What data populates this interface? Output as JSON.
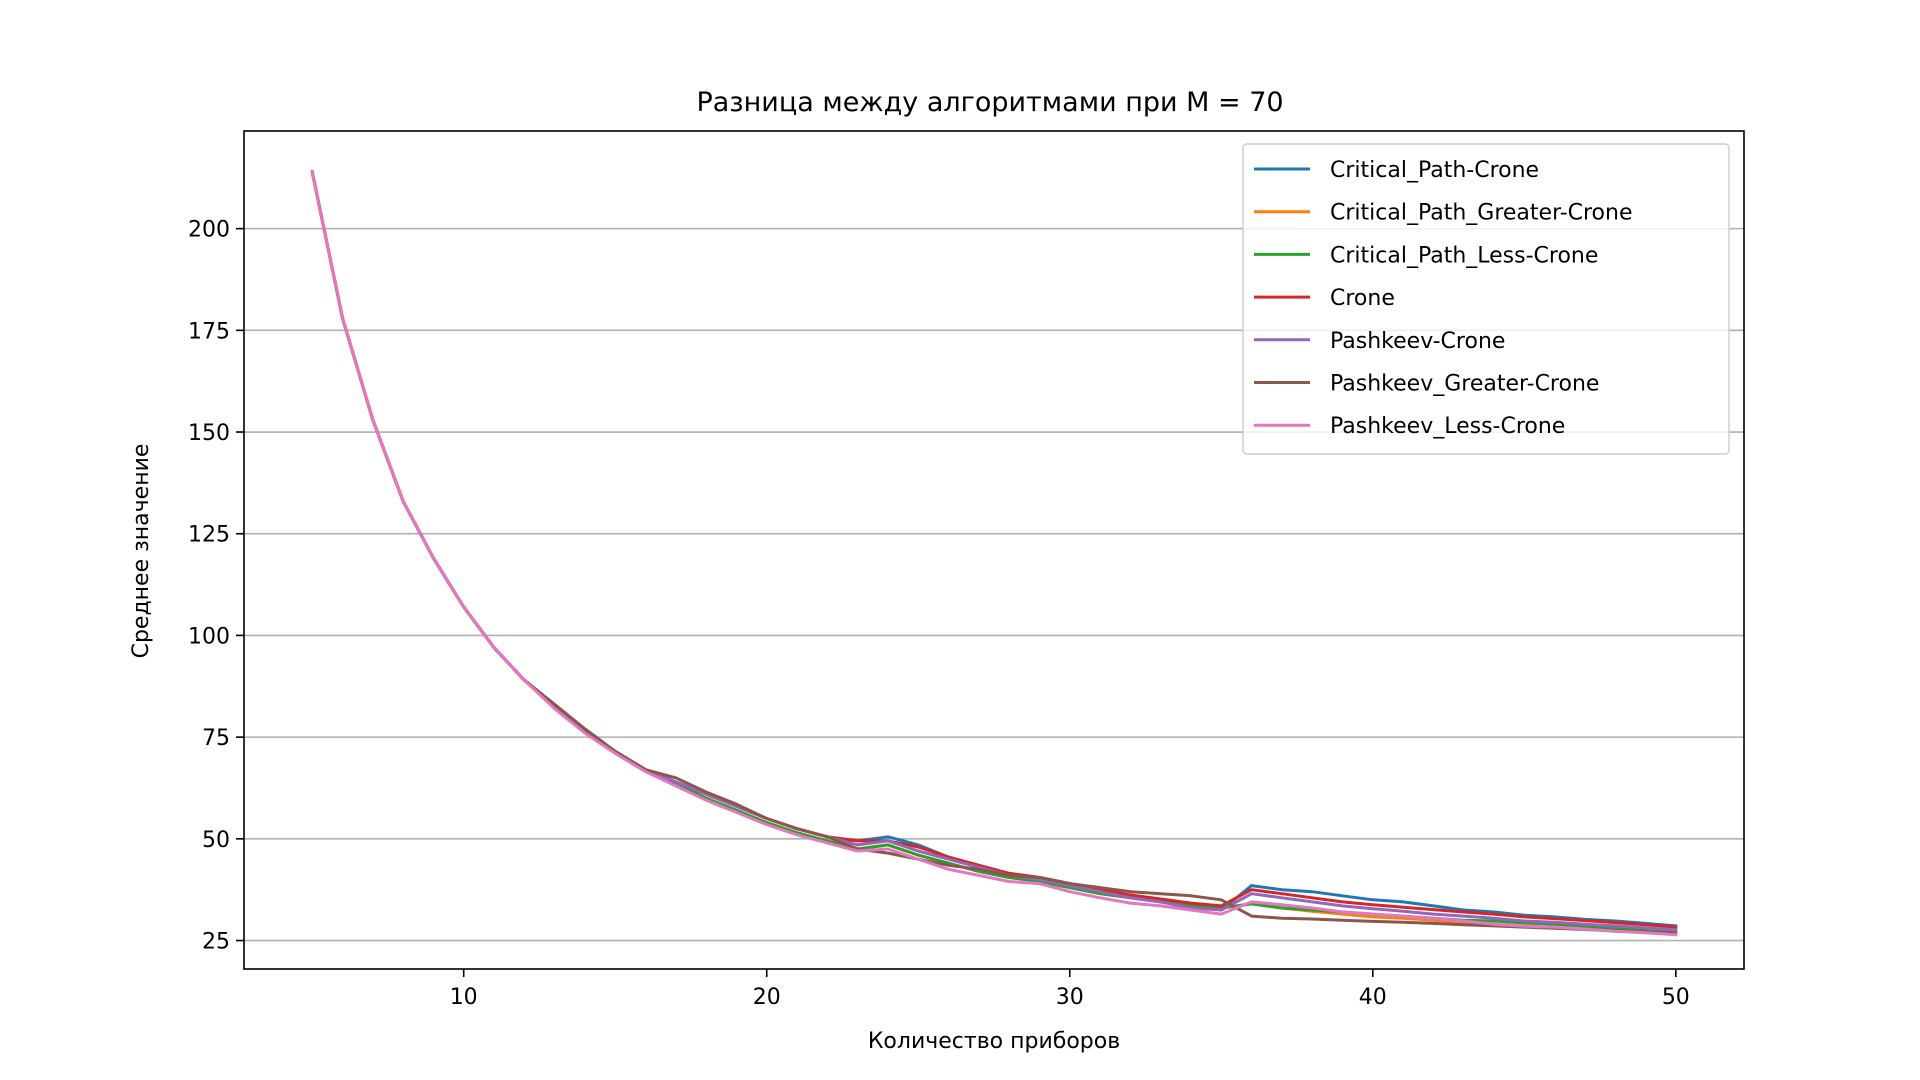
{
  "chart_data": {
    "type": "line",
    "title": "Разница между алгоритмами при M = 70",
    "xlabel": "Количество приборов",
    "ylabel": "Среднее значение",
    "xlim": [
      2.75,
      52.25
    ],
    "ylim": [
      18,
      224
    ],
    "xticks": [
      10,
      20,
      30,
      40,
      50
    ],
    "yticks": [
      25,
      50,
      75,
      100,
      125,
      150,
      175,
      200
    ],
    "grid": "y",
    "legend_position": "top-right",
    "x": [
      5,
      6,
      7,
      8,
      9,
      10,
      11,
      12,
      13,
      14,
      15,
      16,
      17,
      18,
      19,
      20,
      21,
      22,
      23,
      24,
      25,
      26,
      27,
      28,
      29,
      30,
      31,
      32,
      33,
      34,
      35,
      36,
      37,
      38,
      39,
      40,
      41,
      42,
      43,
      44,
      45,
      46,
      47,
      48,
      49,
      50
    ],
    "series": [
      {
        "name": "Critical_Path-Crone",
        "color": "#1f77b4",
        "values": [
          214,
          178,
          153,
          133,
          119,
          107,
          97,
          89,
          83,
          77,
          71.5,
          67,
          64,
          61,
          58,
          55,
          52.5,
          50.5,
          49.5,
          50.5,
          48.5,
          45.5,
          43.5,
          41.5,
          40.5,
          39,
          37.5,
          36,
          35,
          33.5,
          32.5,
          38.5,
          37.5,
          37,
          36,
          35,
          34.5,
          33.5,
          32.5,
          32,
          31.2,
          30.8,
          30.2,
          29.8,
          29.2,
          28.6
        ]
      },
      {
        "name": "Critical_Path_Greater-Crone",
        "color": "#ff7f0e",
        "values": [
          214,
          178,
          153,
          133,
          119,
          107,
          97,
          89,
          82.5,
          76.5,
          71.5,
          67,
          63.5,
          60,
          57,
          54,
          51.5,
          49.5,
          47.5,
          48.5,
          46,
          44,
          42,
          40.5,
          39.5,
          38,
          36.5,
          35.5,
          34.5,
          33.5,
          33,
          34,
          33,
          32.2,
          31.5,
          30.8,
          30.5,
          30,
          29.5,
          29,
          28.5,
          28.2,
          27.8,
          27.3,
          27,
          26.6
        ]
      },
      {
        "name": "Critical_Path_Less-Crone",
        "color": "#2ca02c",
        "values": [
          214,
          178,
          153,
          133,
          119,
          107,
          97,
          89,
          82.5,
          76.5,
          71.5,
          67,
          63.5,
          60,
          57,
          54,
          51.5,
          49.5,
          47.5,
          48.5,
          46,
          44,
          42,
          40.5,
          39.5,
          38,
          36.5,
          35.5,
          34.5,
          33.5,
          33,
          34,
          33,
          32.5,
          32,
          31.5,
          31,
          30.5,
          30,
          29.8,
          29.3,
          29,
          28.5,
          28,
          27.8,
          27.4
        ]
      },
      {
        "name": "Crone",
        "color": "#d62728",
        "values": [
          214,
          178,
          153,
          133,
          119,
          107,
          97,
          89,
          83,
          77,
          71.5,
          67,
          64,
          61,
          58,
          55,
          52.5,
          50.5,
          49.5,
          49.5,
          48,
          45.5,
          43.5,
          41.5,
          40.5,
          39,
          37.5,
          36.2,
          35.2,
          34.2,
          33.5,
          37.5,
          36.5,
          35.5,
          34.5,
          33.8,
          33.2,
          32.6,
          32,
          31.5,
          30.8,
          30.4,
          29.9,
          29.4,
          28.9,
          28.3
        ]
      },
      {
        "name": "Pashkeev-Crone",
        "color": "#9467bd",
        "values": [
          214,
          178,
          153,
          133,
          119,
          107,
          97,
          89,
          83,
          77,
          71.5,
          67,
          64,
          61,
          58,
          55,
          52.5,
          50.5,
          48.5,
          49.5,
          47,
          45,
          43,
          41,
          40,
          38.5,
          37,
          35.5,
          34.5,
          33,
          32.5,
          36.5,
          35.5,
          34.5,
          33.5,
          32.8,
          32.2,
          31.5,
          31,
          30.5,
          29.8,
          29.5,
          29,
          28.6,
          28.1,
          27.6
        ]
      },
      {
        "name": "Pashkeev_Greater-Crone",
        "color": "#8c564b",
        "values": [
          214,
          178,
          153,
          133,
          119,
          107,
          97,
          89,
          83,
          77,
          71.5,
          67,
          65,
          61.5,
          58.5,
          55,
          52.5,
          50.5,
          47.5,
          46.5,
          45,
          43.5,
          42.5,
          41,
          40.5,
          39,
          38,
          37,
          36.5,
          36,
          35,
          31,
          30.5,
          30.3,
          30,
          29.7,
          29.5,
          29.2,
          28.9,
          28.6,
          28.3,
          28,
          27.7,
          27.4,
          27.1,
          26.8
        ]
      },
      {
        "name": "Pashkeev_Less-Crone",
        "color": "#e377c2",
        "values": [
          214,
          178,
          153,
          133,
          119,
          107,
          97,
          89,
          82,
          76,
          71,
          66.5,
          63,
          59.5,
          56.5,
          53.5,
          51,
          49,
          47,
          47.5,
          45,
          42.5,
          41,
          39.5,
          39,
          37,
          35.5,
          34.2,
          33.5,
          32.5,
          31.5,
          34.5,
          33.8,
          33,
          32,
          31.5,
          31,
          30.5,
          29.8,
          29,
          28.5,
          28.3,
          27.8,
          27.3,
          26.9,
          26.4
        ]
      }
    ]
  }
}
